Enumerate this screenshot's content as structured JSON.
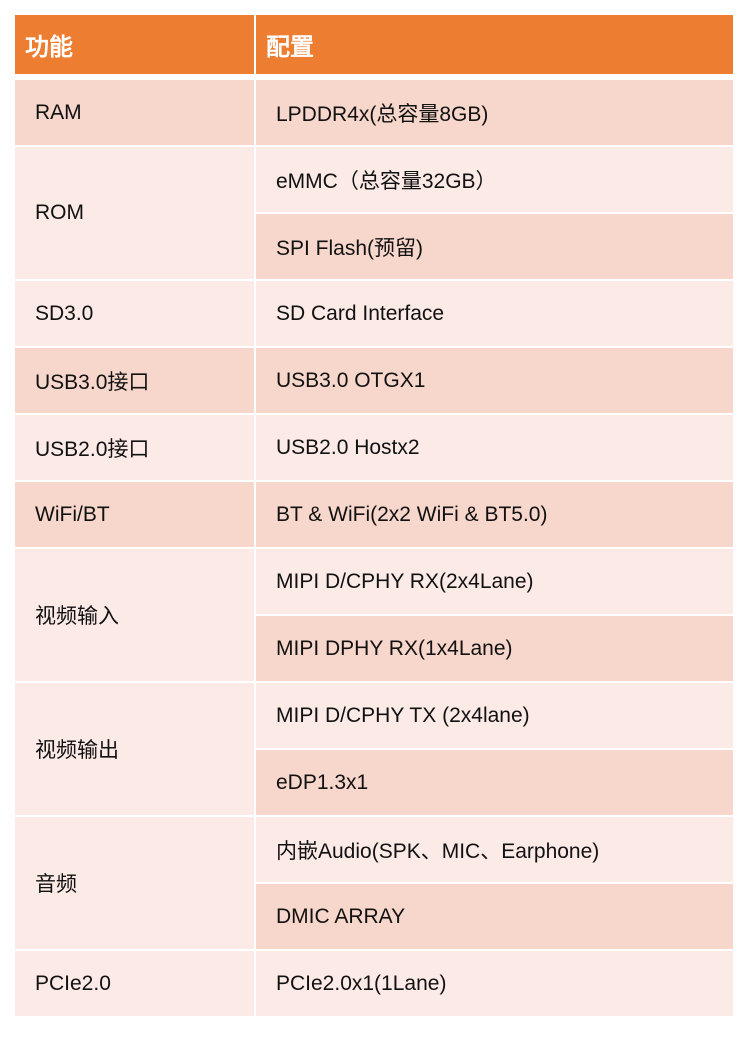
{
  "header": {
    "col1": "功能",
    "col2": "配置"
  },
  "colors": {
    "header": "#ED7D31",
    "dark": "#F7D6CB",
    "light": "#FBEAE6"
  },
  "rows": [
    {
      "feature": "RAM",
      "shade": "dark",
      "configs": [
        {
          "text": "LPDDR4x(总容量8GB)",
          "shade": "dark"
        }
      ]
    },
    {
      "feature": "ROM",
      "shade": "light",
      "configs": [
        {
          "text": "eMMC（总容量32GB）",
          "shade": "light"
        },
        {
          "text": "SPI Flash(预留)",
          "shade": "dark"
        }
      ]
    },
    {
      "feature": "SD3.0",
      "shade": "light",
      "configs": [
        {
          "text": "SD Card Interface",
          "shade": "light"
        }
      ]
    },
    {
      "feature": "USB3.0接口",
      "shade": "dark",
      "configs": [
        {
          "text": "USB3.0 OTGX1",
          "shade": "dark"
        }
      ]
    },
    {
      "feature": "USB2.0接口",
      "shade": "light",
      "configs": [
        {
          "text": "USB2.0 Hostx2",
          "shade": "light"
        }
      ]
    },
    {
      "feature": "WiFi/BT",
      "shade": "dark",
      "configs": [
        {
          "text": "BT & WiFi(2x2 WiFi & BT5.0)",
          "shade": "dark"
        }
      ]
    },
    {
      "feature": "视频输入",
      "shade": "light",
      "configs": [
        {
          "text": "MIPI D/CPHY RX(2x4Lane)",
          "shade": "light"
        },
        {
          "text": "MIPI DPHY RX(1x4Lane)",
          "shade": "dark"
        }
      ]
    },
    {
      "feature": "视频输出",
      "shade": "light",
      "configs": [
        {
          "text": "MIPI D/CPHY TX (2x4lane)",
          "shade": "light"
        },
        {
          "text": "eDP1.3x1",
          "shade": "dark"
        }
      ]
    },
    {
      "feature": "音频",
      "shade": "light",
      "configs": [
        {
          "text": "内嵌Audio(SPK、MIC、Earphone)",
          "shade": "light"
        },
        {
          "text": "DMIC ARRAY",
          "shade": "dark"
        }
      ]
    },
    {
      "feature": "PCIe2.0",
      "shade": "light",
      "configs": [
        {
          "text": "PCIe2.0x1(1Lane)",
          "shade": "light"
        }
      ]
    }
  ]
}
